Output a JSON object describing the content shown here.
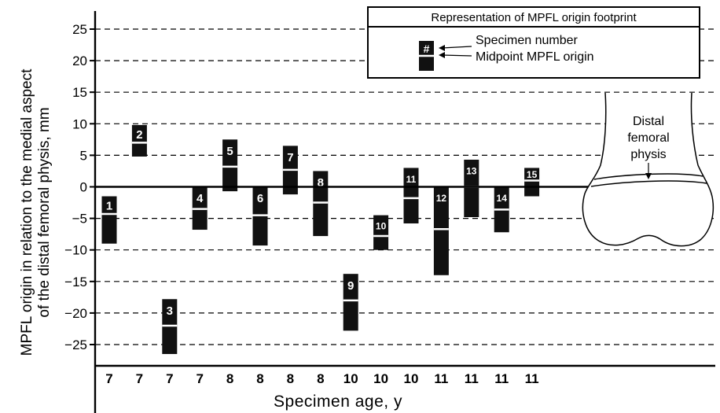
{
  "chart_data": {
    "type": "bar",
    "subtype": "floating-range",
    "xlabel": "Specimen age, y",
    "ylabel_lines": [
      "MPFL origin in relation to the medial aspect",
      "of the distal femoral physis, mm"
    ],
    "ylim": [
      -28,
      28
    ],
    "yticks": [
      25,
      20,
      15,
      10,
      5,
      0,
      -5,
      -10,
      -15,
      -20,
      -25
    ],
    "grid": true,
    "categories": [
      "7",
      "7",
      "7",
      "7",
      "8",
      "8",
      "8",
      "8",
      "10",
      "10",
      "10",
      "11",
      "11",
      "11",
      "11"
    ],
    "specimens": [
      {
        "number": "1",
        "age": "7",
        "top": -1.5,
        "bottom": -9.0,
        "midpoint": -4.3
      },
      {
        "number": "2",
        "age": "7",
        "top": 9.8,
        "bottom": 4.8,
        "midpoint": 7.0
      },
      {
        "number": "3",
        "age": "7",
        "top": -17.8,
        "bottom": -26.5,
        "midpoint": -22.0
      },
      {
        "number": "4",
        "age": "7",
        "top": 0.0,
        "bottom": -6.8,
        "midpoint": -3.5
      },
      {
        "number": "5",
        "age": "8",
        "top": 7.5,
        "bottom": -0.7,
        "midpoint": 3.2
      },
      {
        "number": "6",
        "age": "8",
        "top": 0.0,
        "bottom": -9.3,
        "midpoint": -4.5
      },
      {
        "number": "7",
        "age": "8",
        "top": 6.5,
        "bottom": -1.2,
        "midpoint": 2.7
      },
      {
        "number": "8",
        "age": "8",
        "top": 2.5,
        "bottom": -7.8,
        "midpoint": -2.5
      },
      {
        "number": "9",
        "age": "10",
        "top": -13.8,
        "bottom": -22.8,
        "midpoint": -18.0
      },
      {
        "number": "10",
        "age": "10",
        "top": -4.5,
        "bottom": -10.0,
        "midpoint": -7.8
      },
      {
        "number": "11",
        "age": "10",
        "top": 3.0,
        "bottom": -5.8,
        "midpoint": -1.8
      },
      {
        "number": "12",
        "age": "11",
        "top": 0.0,
        "bottom": -14.0,
        "midpoint": -6.7
      },
      {
        "number": "13",
        "age": "11",
        "top": 4.3,
        "bottom": -4.8,
        "midpoint": 0.0
      },
      {
        "number": "14",
        "age": "11",
        "top": 0.0,
        "bottom": -7.2,
        "midpoint": -3.6
      },
      {
        "number": "15",
        "age": "11",
        "top": 3.0,
        "bottom": -1.5,
        "midpoint": 1.0
      }
    ],
    "bar_color": "#111111",
    "midpoint_color": "#ffffff"
  },
  "legend": {
    "title": "Representation of MPFL origin footprint",
    "symbol": "#",
    "specimen_label": "Specimen number",
    "midpoint_label": "Midpoint MPFL origin"
  },
  "illustration": {
    "name": "distal-femur",
    "label_lines": [
      "Distal",
      "femoral",
      "physis"
    ]
  }
}
